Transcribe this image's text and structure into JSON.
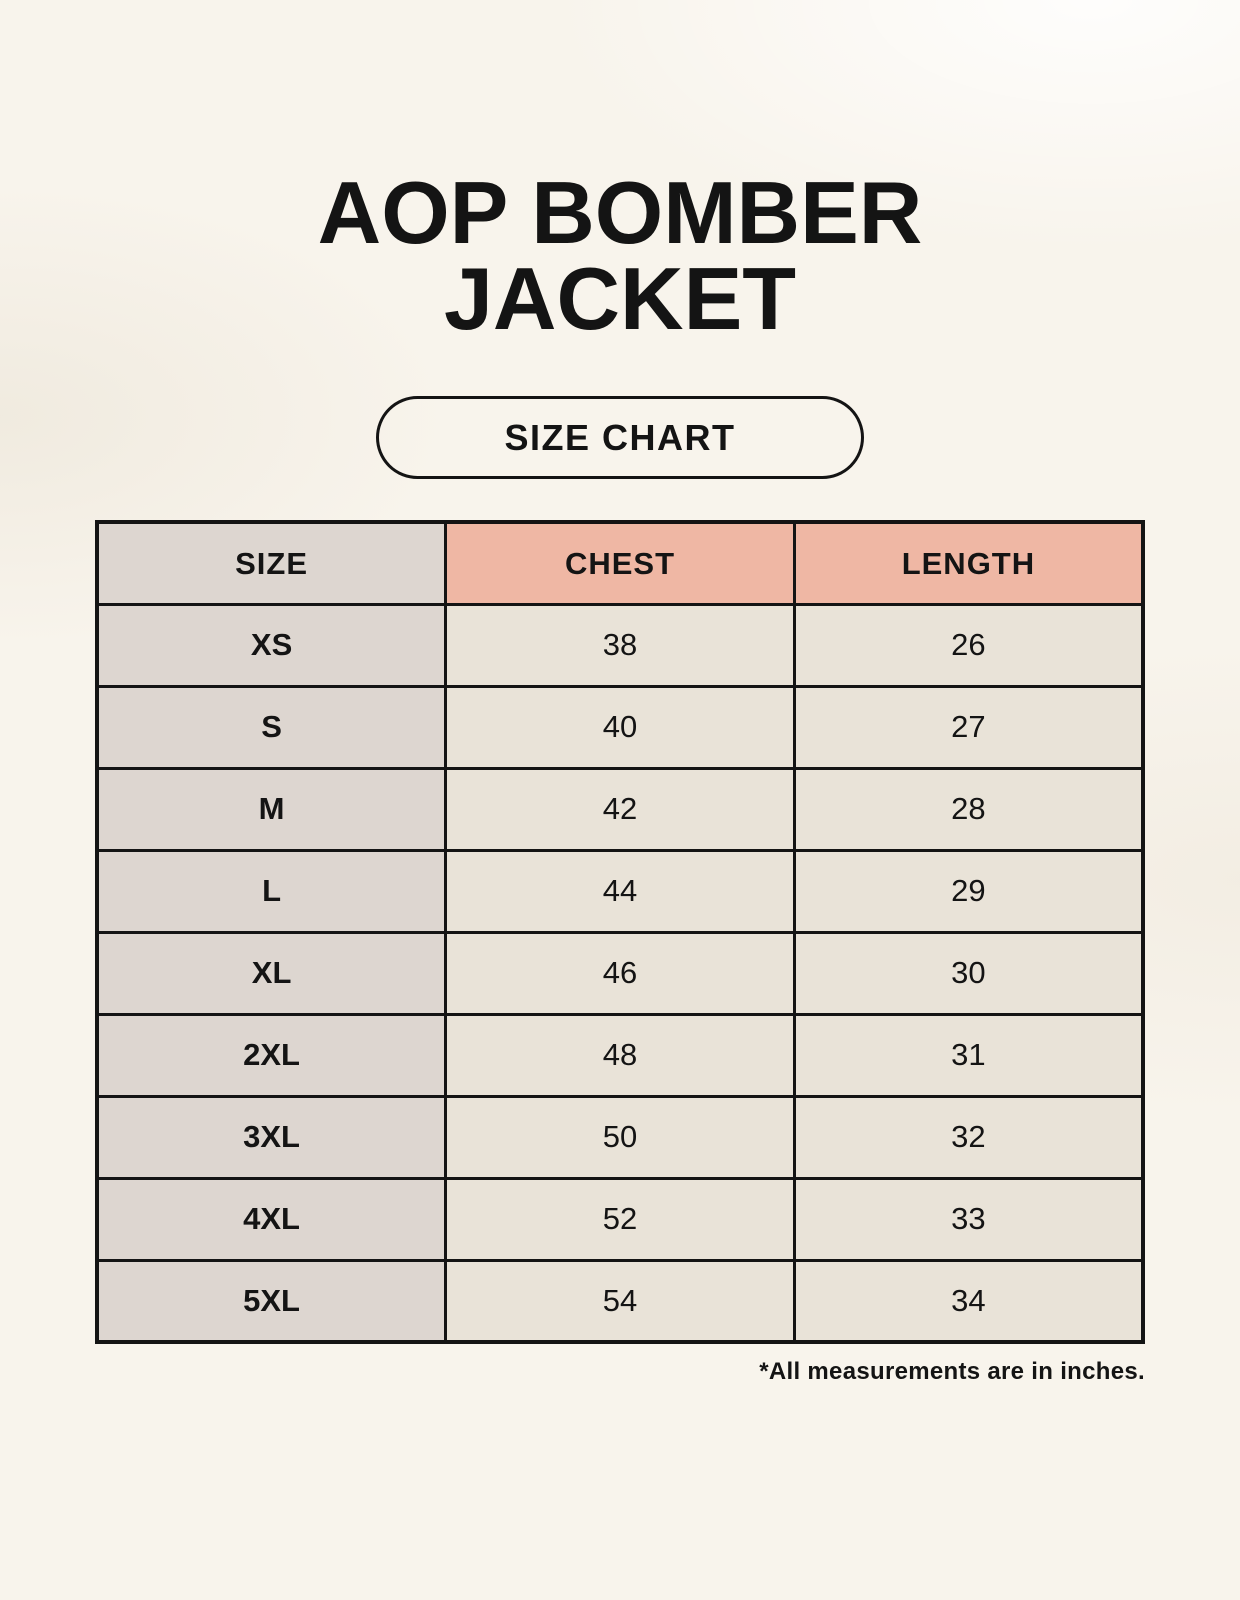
{
  "page": {
    "title_lines": [
      "AOP BOMBER",
      "JACKET"
    ],
    "badge_label": "SIZE CHART",
    "footnote": "*All measurements are in inches."
  },
  "table": {
    "columns": [
      "SIZE",
      "CHEST",
      "LENGTH"
    ],
    "rows": [
      [
        "XS",
        "38",
        "26"
      ],
      [
        "S",
        "40",
        "27"
      ],
      [
        "M",
        "42",
        "28"
      ],
      [
        "L",
        "44",
        "29"
      ],
      [
        "XL",
        "46",
        "30"
      ],
      [
        "2XL",
        "48",
        "31"
      ],
      [
        "3XL",
        "50",
        "32"
      ],
      [
        "4XL",
        "52",
        "33"
      ],
      [
        "5XL",
        "54",
        "34"
      ]
    ]
  },
  "colors": {
    "background": "#f8f4ec",
    "size_column_bg": "#ddd6d0",
    "measure_header_bg": "#efb7a4",
    "data_cell_bg": "#e9e3d8",
    "border": "#141414",
    "text": "#141414"
  },
  "chart_data": {
    "type": "table",
    "title": "AOP BOMBER JACKET",
    "subtitle": "SIZE CHART",
    "columns": [
      "SIZE",
      "CHEST",
      "LENGTH"
    ],
    "rows": [
      {
        "size": "XS",
        "chest": 38,
        "length": 26
      },
      {
        "size": "S",
        "chest": 40,
        "length": 27
      },
      {
        "size": "M",
        "chest": 42,
        "length": 28
      },
      {
        "size": "L",
        "chest": 44,
        "length": 29
      },
      {
        "size": "XL",
        "chest": 46,
        "length": 30
      },
      {
        "size": "2XL",
        "chest": 48,
        "length": 31
      },
      {
        "size": "3XL",
        "chest": 50,
        "length": 32
      },
      {
        "size": "4XL",
        "chest": 52,
        "length": 33
      },
      {
        "size": "5XL",
        "chest": 54,
        "length": 34
      }
    ],
    "units": "inches",
    "note": "*All measurements are in inches."
  }
}
